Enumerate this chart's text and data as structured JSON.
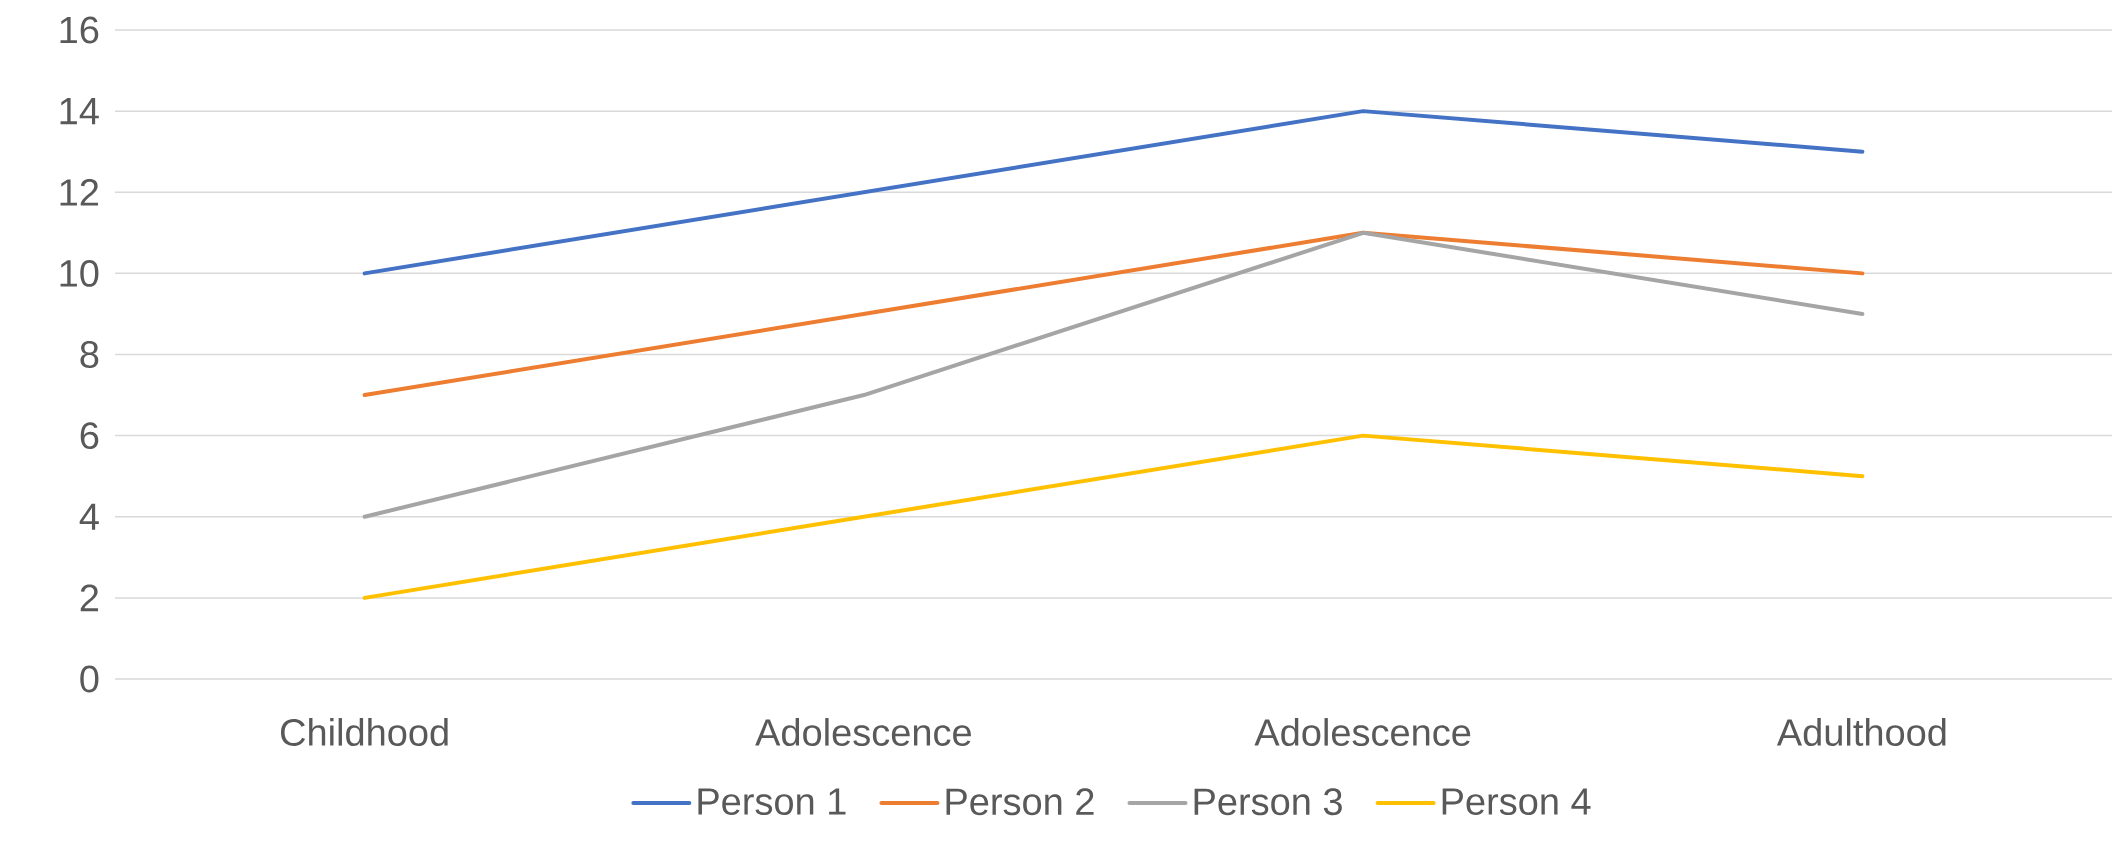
{
  "chart_data": {
    "type": "line",
    "categories": [
      "Childhood",
      "Adolescence",
      "Adolescence",
      "Adulthood"
    ],
    "series": [
      {
        "name": "Person 1",
        "color": "#4472c4",
        "values": [
          10,
          12,
          14,
          13
        ]
      },
      {
        "name": "Person 2",
        "color": "#ed7d31",
        "values": [
          7,
          9,
          11,
          10
        ]
      },
      {
        "name": "Person 3",
        "color": "#a5a5a5",
        "values": [
          4,
          7,
          11,
          9
        ]
      },
      {
        "name": "Person 4",
        "color": "#ffc000",
        "values": [
          2,
          4,
          6,
          5
        ]
      }
    ],
    "ylim": [
      0,
      16
    ],
    "yticks": [
      0,
      2,
      4,
      6,
      8,
      10,
      12,
      14,
      16
    ],
    "grid": "y",
    "legend": "bottom"
  }
}
